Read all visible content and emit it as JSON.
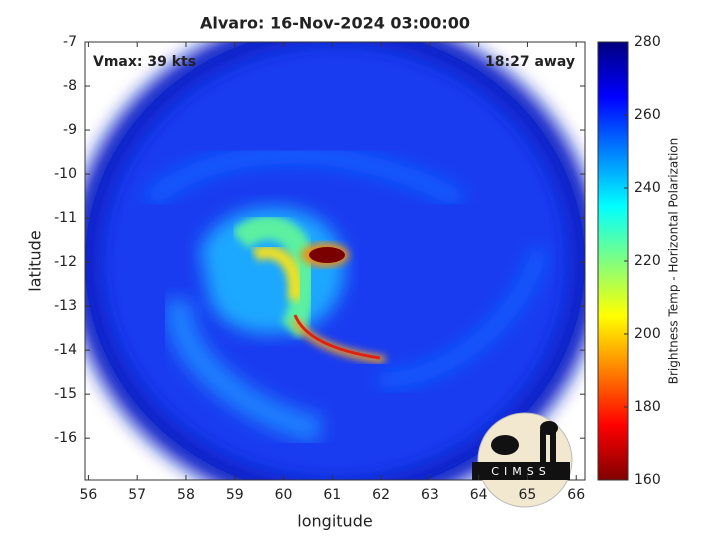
{
  "chart_data": {
    "type": "heatmap",
    "title": "Alvaro: 16-Nov-2024 03:00:00",
    "annotations": [
      "Vmax: 39 kts",
      "18:27 away"
    ],
    "xlabel": "longitude",
    "ylabel": "latitude",
    "xlim": [
      55.93,
      66.18
    ],
    "xticks": [
      56,
      57,
      58,
      59,
      60,
      61,
      62,
      63,
      64,
      65,
      66
    ],
    "ylim": [
      -16.95,
      -7
    ],
    "yticks": [
      -7,
      -8,
      -9,
      -10,
      -11,
      -12,
      -13,
      -14,
      -15,
      -16
    ],
    "colorbar": {
      "label": "Brightness Temp - Horizontal Polarization",
      "lim": [
        160,
        280
      ],
      "ticks": [
        160,
        180,
        200,
        220,
        240,
        260,
        280
      ],
      "colormap": [
        "#800000",
        "#ff0000",
        "#ff8000",
        "#ffff00",
        "#80ff80",
        "#00ffff",
        "#0080ff",
        "#0000ff",
        "#000080"
      ]
    },
    "logo_text": "CIMSS"
  }
}
